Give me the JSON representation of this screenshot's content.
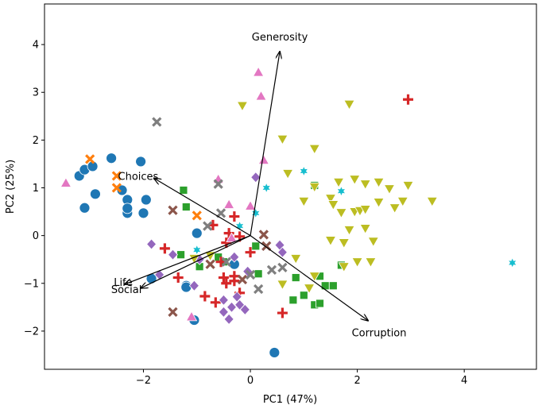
{
  "chart_data": {
    "type": "scatter",
    "title": "",
    "xlabel": "PC1 (47%)",
    "ylabel": "PC2 (25%)",
    "xlim": [
      -3.85,
      5.35
    ],
    "ylim": [
      -2.8,
      4.85
    ],
    "xticks": [
      -2,
      0,
      2,
      4
    ],
    "yticks": [
      -2,
      -1,
      0,
      1,
      2,
      3,
      4
    ],
    "grid": false,
    "legend": "none",
    "loadings": [
      {
        "label": "Generosity",
        "x": 0.55,
        "y": 3.85
      },
      {
        "label": "Choices",
        "x": -1.8,
        "y": 1.2
      },
      {
        "label": "Life",
        "x": -2.35,
        "y": -1.02
      },
      {
        "label": "Social",
        "x": -2.05,
        "y": -1.1
      },
      {
        "label": "Corruption",
        "x": 2.2,
        "y": -1.78
      }
    ],
    "series": [
      {
        "marker": "circle",
        "color": "#1f77b4",
        "points": [
          [
            -3.2,
            1.25
          ],
          [
            -3.1,
            1.38
          ],
          [
            -3.1,
            0.58
          ],
          [
            -2.95,
            1.45
          ],
          [
            -2.9,
            0.87
          ],
          [
            -2.6,
            1.62
          ],
          [
            -2.4,
            0.95
          ],
          [
            -2.3,
            0.75
          ],
          [
            -2.3,
            0.47
          ],
          [
            -2.3,
            0.57
          ],
          [
            -2.05,
            1.55
          ],
          [
            -2.0,
            0.47
          ],
          [
            -1.95,
            0.75
          ],
          [
            -1.85,
            -0.9
          ],
          [
            -1.2,
            -1.05
          ],
          [
            -1.2,
            -1.08
          ],
          [
            -1.05,
            -1.77
          ],
          [
            -1.0,
            0.05
          ],
          [
            -0.3,
            -0.6
          ],
          [
            0.45,
            -2.45
          ]
        ]
      },
      {
        "marker": "x",
        "color": "#ff7f0e",
        "points": [
          [
            -3.0,
            1.6
          ],
          [
            -2.5,
            1.25
          ],
          [
            -2.5,
            1.0
          ],
          [
            -1.0,
            0.42
          ]
        ]
      },
      {
        "marker": "square",
        "color": "#2ca02c",
        "points": [
          [
            -1.25,
            0.95
          ],
          [
            -1.3,
            -0.4
          ],
          [
            -1.2,
            0.6
          ],
          [
            -0.95,
            -0.65
          ],
          [
            -0.6,
            -0.45
          ],
          [
            -0.5,
            -0.55
          ],
          [
            0.1,
            -0.22
          ],
          [
            0.15,
            -0.8
          ],
          [
            0.8,
            -1.35
          ],
          [
            0.85,
            -0.88
          ],
          [
            1.0,
            -1.25
          ],
          [
            1.2,
            -1.45
          ],
          [
            1.2,
            1.05
          ],
          [
            1.3,
            -1.42
          ],
          [
            1.3,
            -0.85
          ],
          [
            1.4,
            -1.05
          ],
          [
            1.55,
            -1.05
          ],
          [
            1.7,
            -0.62
          ]
        ]
      },
      {
        "marker": "plus",
        "color": "#d62728",
        "points": [
          [
            -1.6,
            -0.27
          ],
          [
            -1.35,
            -0.88
          ],
          [
            -0.85,
            -1.27
          ],
          [
            -0.7,
            0.22
          ],
          [
            -0.65,
            -1.4
          ],
          [
            -0.55,
            -0.55
          ],
          [
            -0.5,
            -0.88
          ],
          [
            -0.45,
            -1.0
          ],
          [
            -0.45,
            -0.15
          ],
          [
            -0.4,
            0.05
          ],
          [
            -0.3,
            -0.95
          ],
          [
            -0.3,
            -0.85
          ],
          [
            -0.3,
            0.4
          ],
          [
            -0.2,
            -1.2
          ],
          [
            -0.2,
            -0.02
          ],
          [
            0.0,
            -0.35
          ],
          [
            0.6,
            -1.62
          ],
          [
            2.95,
            2.85
          ]
        ]
      },
      {
        "marker": "diamond",
        "color": "#9467bd",
        "points": [
          [
            -1.85,
            -0.18
          ],
          [
            -1.7,
            -0.82
          ],
          [
            -1.45,
            -0.4
          ],
          [
            -1.05,
            -1.05
          ],
          [
            -0.95,
            -0.5
          ],
          [
            -0.5,
            -1.35
          ],
          [
            -0.5,
            -1.6
          ],
          [
            -0.4,
            -1.75
          ],
          [
            -0.35,
            -1.5
          ],
          [
            -0.3,
            -0.45
          ],
          [
            -0.25,
            -1.28
          ],
          [
            -0.2,
            -1.45
          ],
          [
            -0.1,
            -1.55
          ],
          [
            -0.05,
            -0.75
          ],
          [
            0.1,
            1.22
          ],
          [
            0.55,
            -0.2
          ],
          [
            0.6,
            -0.35
          ]
        ]
      },
      {
        "marker": "x",
        "color": "#8c564b",
        "points": [
          [
            -1.45,
            -1.6
          ],
          [
            -1.45,
            0.53
          ],
          [
            -0.75,
            -0.6
          ],
          [
            -0.15,
            -0.92
          ],
          [
            0.25,
            0.02
          ],
          [
            0.3,
            -0.22
          ]
        ]
      },
      {
        "marker": "triangle-up",
        "color": "#e377c2",
        "points": [
          [
            -3.45,
            1.1
          ],
          [
            -1.1,
            -1.7
          ],
          [
            -0.6,
            1.18
          ],
          [
            -0.4,
            0.65
          ],
          [
            -0.35,
            -0.05
          ],
          [
            0.0,
            0.62
          ],
          [
            0.15,
            3.42
          ],
          [
            0.2,
            2.92
          ],
          [
            0.25,
            1.58
          ]
        ]
      },
      {
        "marker": "x",
        "color": "#7f7f7f",
        "points": [
          [
            -1.75,
            2.38
          ],
          [
            -0.8,
            0.2
          ],
          [
            -0.6,
            1.08
          ],
          [
            -0.55,
            0.47
          ],
          [
            -0.45,
            -0.55
          ],
          [
            0.0,
            -0.82
          ],
          [
            0.15,
            -1.12
          ],
          [
            0.4,
            -0.72
          ],
          [
            0.6,
            -0.67
          ]
        ]
      },
      {
        "marker": "triangle-down",
        "color": "#bcbd22",
        "points": [
          [
            -1.05,
            -0.48
          ],
          [
            -0.75,
            -0.42
          ],
          [
            -0.15,
            2.72
          ],
          [
            0.6,
            2.02
          ],
          [
            0.7,
            1.3
          ],
          [
            0.6,
            -1.02
          ],
          [
            0.85,
            -0.48
          ],
          [
            1.0,
            0.72
          ],
          [
            1.1,
            -1.1
          ],
          [
            1.2,
            1.82
          ],
          [
            1.2,
            1.02
          ],
          [
            1.2,
            -0.85
          ],
          [
            1.5,
            0.78
          ],
          [
            1.5,
            -0.1
          ],
          [
            1.55,
            0.65
          ],
          [
            1.65,
            1.12
          ],
          [
            1.7,
            0.48
          ],
          [
            1.75,
            -0.65
          ],
          [
            1.75,
            -0.15
          ],
          [
            1.85,
            2.75
          ],
          [
            1.85,
            0.12
          ],
          [
            1.95,
            1.18
          ],
          [
            1.95,
            0.5
          ],
          [
            2.0,
            -0.55
          ],
          [
            2.05,
            0.52
          ],
          [
            2.15,
            1.08
          ],
          [
            2.15,
            0.55
          ],
          [
            2.15,
            0.15
          ],
          [
            2.25,
            -0.55
          ],
          [
            2.3,
            -0.12
          ],
          [
            2.4,
            1.12
          ],
          [
            2.4,
            0.7
          ],
          [
            2.6,
            0.98
          ],
          [
            2.7,
            0.58
          ],
          [
            2.85,
            0.72
          ],
          [
            2.95,
            1.05
          ],
          [
            3.4,
            0.72
          ]
        ]
      },
      {
        "marker": "star",
        "color": "#17becf",
        "points": [
          [
            -1.0,
            -0.3
          ],
          [
            -0.2,
            0.2
          ],
          [
            0.1,
            0.47
          ],
          [
            0.3,
            1.0
          ],
          [
            1.0,
            1.35
          ],
          [
            1.7,
            0.93
          ],
          [
            4.9,
            -0.57
          ]
        ]
      }
    ]
  }
}
